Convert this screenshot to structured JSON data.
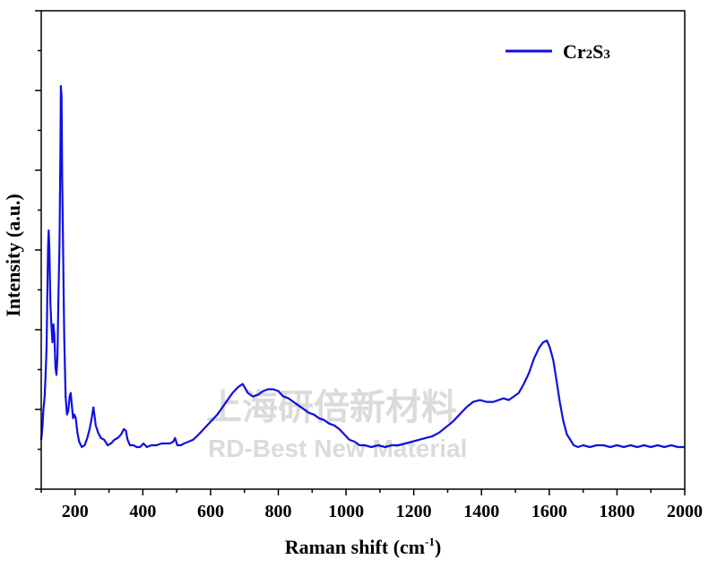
{
  "chart_data": {
    "type": "line",
    "xlabel": "Raman shift (cm",
    "xlabel_sup": "-1",
    "xlabel_close": ")",
    "ylabel": "Intensity (a.u.)",
    "xlim": [
      100,
      2000
    ],
    "ylim": [
      0,
      100
    ],
    "x_ticks": [
      200,
      400,
      600,
      800,
      1000,
      1200,
      1400,
      1600,
      1800,
      2000
    ],
    "y_tick_labels_shown": false,
    "grid": false,
    "legend_position": "top-right",
    "colors": {
      "line": "#1010e0",
      "axis": "#000000"
    },
    "watermark": {
      "line1": "上海研倍新材料",
      "line2": "RD-Best New Material"
    },
    "series": [
      {
        "name": "Cr2S3",
        "points": [
          [
            100,
            2
          ],
          [
            104,
            6
          ],
          [
            106,
            10
          ],
          [
            110,
            14
          ],
          [
            113,
            20
          ],
          [
            116,
            28
          ],
          [
            118,
            42
          ],
          [
            120,
            55
          ],
          [
            122,
            60
          ],
          [
            124,
            55
          ],
          [
            127,
            40
          ],
          [
            130,
            34
          ],
          [
            133,
            29
          ],
          [
            136,
            34
          ],
          [
            139,
            31
          ],
          [
            142,
            22
          ],
          [
            145,
            20
          ],
          [
            148,
            25
          ],
          [
            151,
            43
          ],
          [
            154,
            56
          ],
          [
            156,
            77
          ],
          [
            157,
            85
          ],
          [
            158,
            100
          ],
          [
            160,
            97
          ],
          [
            162,
            74
          ],
          [
            164,
            59
          ],
          [
            166,
            45
          ],
          [
            168,
            30
          ],
          [
            172,
            14
          ],
          [
            176,
            9
          ],
          [
            180,
            10
          ],
          [
            184,
            14
          ],
          [
            187,
            15
          ],
          [
            190,
            12
          ],
          [
            194,
            8
          ],
          [
            198,
            9
          ],
          [
            202,
            8
          ],
          [
            207,
            4
          ],
          [
            212,
            1.5
          ],
          [
            220,
            0
          ],
          [
            228,
            0.5
          ],
          [
            236,
            2.5
          ],
          [
            243,
            5
          ],
          [
            249,
            8
          ],
          [
            254,
            11
          ],
          [
            257,
            9
          ],
          [
            261,
            6
          ],
          [
            268,
            4
          ],
          [
            276,
            2.5
          ],
          [
            286,
            2
          ],
          [
            296,
            0.5
          ],
          [
            306,
            1
          ],
          [
            316,
            2
          ],
          [
            326,
            2.5
          ],
          [
            336,
            3.5
          ],
          [
            344,
            5
          ],
          [
            350,
            4.5
          ],
          [
            355,
            2
          ],
          [
            362,
            0.5
          ],
          [
            372,
            0.5
          ],
          [
            382,
            0
          ],
          [
            392,
            0
          ],
          [
            402,
            1
          ],
          [
            412,
            0
          ],
          [
            425,
            0.5
          ],
          [
            440,
            0.5
          ],
          [
            455,
            1
          ],
          [
            470,
            1
          ],
          [
            480,
            1
          ],
          [
            490,
            1.5
          ],
          [
            495,
            2.5
          ],
          [
            502,
            0.5
          ],
          [
            512,
            0.5
          ],
          [
            522,
            1
          ],
          [
            535,
            1.5
          ],
          [
            548,
            2
          ],
          [
            560,
            3
          ],
          [
            575,
            4.5
          ],
          [
            590,
            6
          ],
          [
            605,
            7.5
          ],
          [
            620,
            9
          ],
          [
            635,
            11
          ],
          [
            650,
            13
          ],
          [
            665,
            15
          ],
          [
            680,
            16.5
          ],
          [
            695,
            17.5
          ],
          [
            710,
            15
          ],
          [
            725,
            14
          ],
          [
            740,
            14.5
          ],
          [
            755,
            15.5
          ],
          [
            770,
            16
          ],
          [
            785,
            16
          ],
          [
            800,
            15.5
          ],
          [
            815,
            14
          ],
          [
            830,
            13.5
          ],
          [
            845,
            12.5
          ],
          [
            860,
            11.5
          ],
          [
            875,
            10.5
          ],
          [
            890,
            9.5
          ],
          [
            905,
            9
          ],
          [
            920,
            8
          ],
          [
            935,
            7.5
          ],
          [
            950,
            6.5
          ],
          [
            965,
            6
          ],
          [
            980,
            5
          ],
          [
            995,
            3.5
          ],
          [
            1010,
            2
          ],
          [
            1025,
            1.5
          ],
          [
            1040,
            0.5
          ],
          [
            1055,
            0.5
          ],
          [
            1075,
            0
          ],
          [
            1095,
            0.5
          ],
          [
            1115,
            0
          ],
          [
            1135,
            0.5
          ],
          [
            1155,
            0.5
          ],
          [
            1175,
            1
          ],
          [
            1195,
            1.5
          ],
          [
            1215,
            2
          ],
          [
            1235,
            2.5
          ],
          [
            1255,
            3
          ],
          [
            1275,
            4
          ],
          [
            1295,
            5.5
          ],
          [
            1315,
            7
          ],
          [
            1335,
            9
          ],
          [
            1355,
            11
          ],
          [
            1375,
            12.5
          ],
          [
            1395,
            13
          ],
          [
            1415,
            12.5
          ],
          [
            1435,
            12.5
          ],
          [
            1450,
            13
          ],
          [
            1465,
            13.5
          ],
          [
            1480,
            13
          ],
          [
            1495,
            14
          ],
          [
            1510,
            15
          ],
          [
            1525,
            17.5
          ],
          [
            1540,
            20.5
          ],
          [
            1555,
            24.5
          ],
          [
            1570,
            27.5
          ],
          [
            1582,
            29
          ],
          [
            1593,
            29.5
          ],
          [
            1602,
            27.5
          ],
          [
            1612,
            24
          ],
          [
            1622,
            18
          ],
          [
            1632,
            12
          ],
          [
            1642,
            7
          ],
          [
            1652,
            3.5
          ],
          [
            1662,
            2
          ],
          [
            1672,
            0.5
          ],
          [
            1685,
            0
          ],
          [
            1700,
            0.5
          ],
          [
            1720,
            0
          ],
          [
            1740,
            0.5
          ],
          [
            1760,
            0.5
          ],
          [
            1780,
            0
          ],
          [
            1800,
            0.5
          ],
          [
            1820,
            0
          ],
          [
            1840,
            0.5
          ],
          [
            1860,
            0
          ],
          [
            1880,
            0.5
          ],
          [
            1900,
            0
          ],
          [
            1920,
            0.5
          ],
          [
            1940,
            0
          ],
          [
            1960,
            0.5
          ],
          [
            1980,
            0
          ],
          [
            2000,
            0
          ]
        ]
      }
    ]
  }
}
